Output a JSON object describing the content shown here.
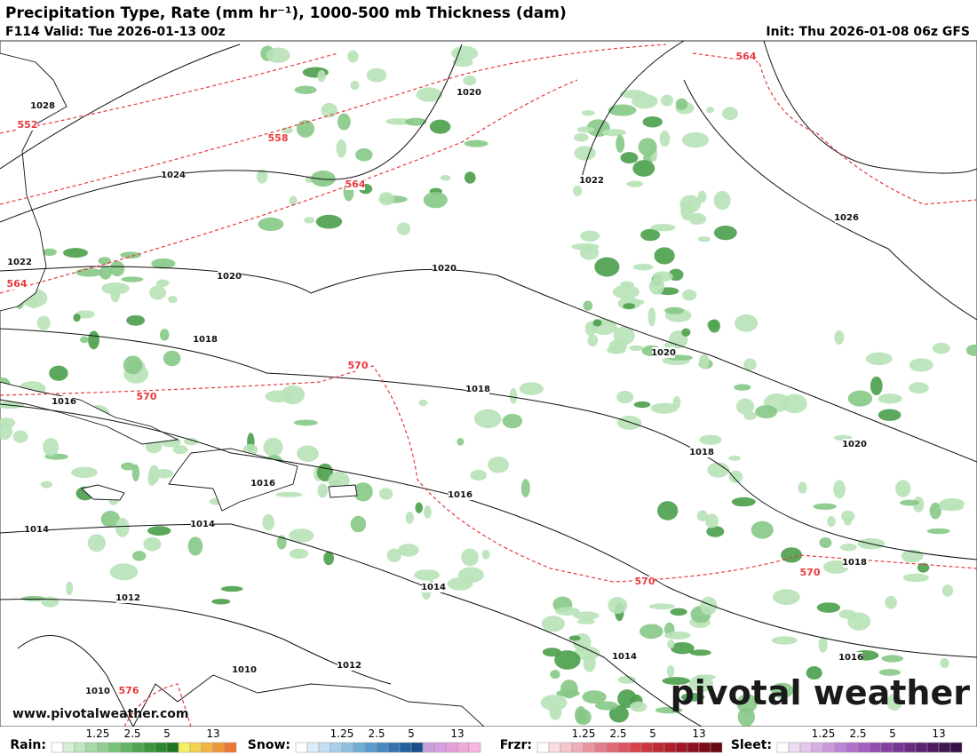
{
  "header": {
    "title": "Precipitation Type, Rate (mm hr⁻¹), 1000-500 mb Thickness (dam)",
    "valid": "F114 Valid: Tue 2026-01-13 00z",
    "init": "Init: Thu 2026-01-08 06z GFS"
  },
  "map": {
    "pressure_labels": [
      "1028",
      "1024",
      "1020",
      "1022",
      "1026",
      "1022",
      "1020",
      "1020",
      "1018",
      "1020",
      "1018",
      "1016",
      "1020",
      "1018",
      "1016",
      "1016",
      "1014",
      "1014",
      "1018",
      "1014",
      "1012",
      "1014",
      "1016",
      "1012",
      "1010",
      "1010"
    ],
    "thickness_labels": [
      "552",
      "558",
      "564",
      "564",
      "564",
      "570",
      "570",
      "570",
      "570",
      "576"
    ],
    "watermark": "pivotal weather",
    "website": "www.pivotalweather.com"
  },
  "legend": [
    {
      "label": "Rain:",
      "ticks": [
        1.25,
        2.5,
        5,
        13
      ],
      "colors": [
        "#ffffff",
        "#d6f0d6",
        "#bfe6bf",
        "#a6dba6",
        "#8fcf8f",
        "#78c278",
        "#62b462",
        "#4ea64e",
        "#3c963c",
        "#2e862e",
        "#207520",
        "#f5f064",
        "#f5d250",
        "#f5b446",
        "#f0963c",
        "#eb7832"
      ]
    },
    {
      "label": "Snow:",
      "ticks": [
        1.25,
        2.5,
        5,
        13
      ],
      "colors": [
        "#ffffff",
        "#dcecf8",
        "#c3def2",
        "#a8cfea",
        "#8cbfe2",
        "#70aed8",
        "#5a9ccd",
        "#4689c0",
        "#3475b0",
        "#25619e",
        "#184e8a",
        "#c8a0dc",
        "#d8a0e0",
        "#e6a0dc",
        "#f0a8d8",
        "#f8b4dc"
      ]
    },
    {
      "label": "Frzr:",
      "ticks": [
        1.25,
        2.5,
        5,
        13
      ],
      "colors": [
        "#ffffff",
        "#f8dce0",
        "#f4c6cc",
        "#f0aeb8",
        "#eb96a0",
        "#e67e8a",
        "#e26874",
        "#de5460",
        "#d8404c",
        "#cc3440",
        "#be2834",
        "#b01e2a",
        "#a01624",
        "#8e101e",
        "#7c0c18",
        "#6a0814"
      ]
    },
    {
      "label": "Sleet:",
      "ticks": [
        1.25,
        2.5,
        5,
        13
      ],
      "colors": [
        "#ffffff",
        "#eedcf4",
        "#e2c6ee",
        "#d6b0e6",
        "#ca9ade",
        "#be84d6",
        "#b070cc",
        "#a25ec0",
        "#944eb2",
        "#8640a2",
        "#783492",
        "#6a2a82",
        "#5c2272",
        "#4e1a62",
        "#421454",
        "#361046"
      ]
    }
  ]
}
